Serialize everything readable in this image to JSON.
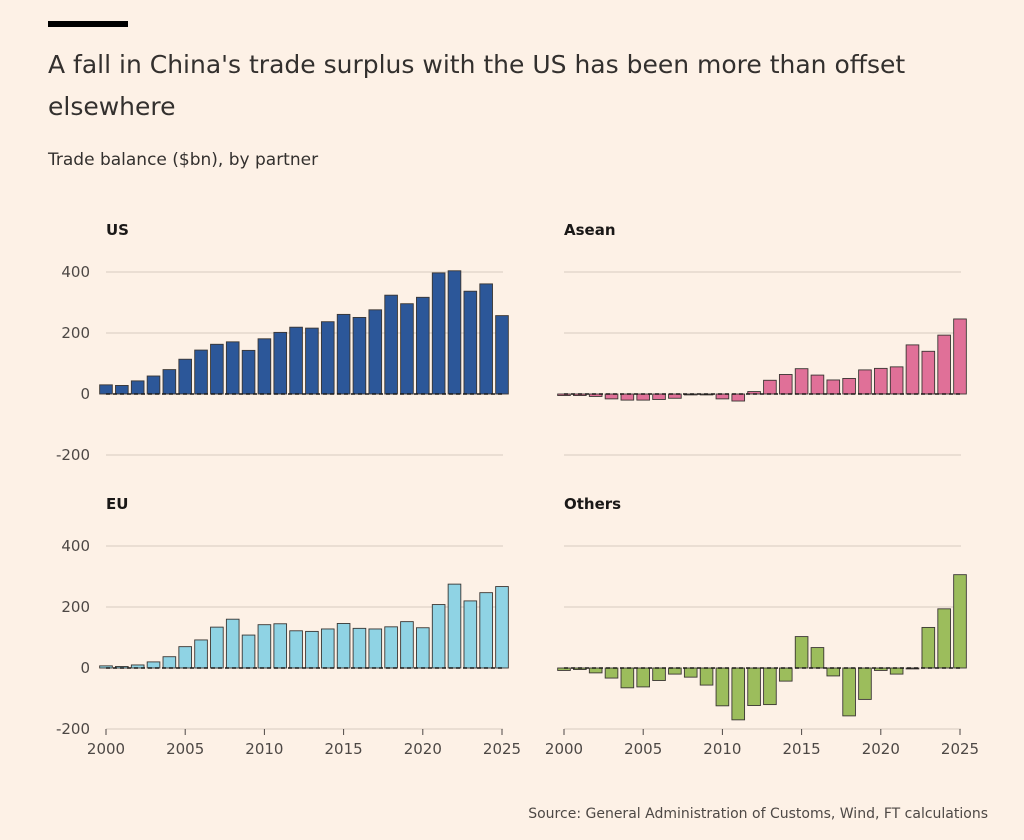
{
  "header": {
    "title": "A fall in China's trade surplus with the US has been more than offset elsewhere",
    "subtitle": "Trade balance ($bn), by partner"
  },
  "footer": {
    "source": "Source: General Administration of Customs, Wind, FT calculations"
  },
  "chart_data": [
    {
      "type": "bar",
      "title": "US",
      "color": "#2c5799",
      "x": [
        2000,
        2001,
        2002,
        2003,
        2004,
        2005,
        2006,
        2007,
        2008,
        2009,
        2010,
        2011,
        2012,
        2013,
        2014,
        2015,
        2016,
        2017,
        2018,
        2019,
        2020,
        2021,
        2022,
        2023,
        2024,
        2025
      ],
      "values": [
        30,
        28,
        43,
        59,
        80,
        114,
        144,
        163,
        171,
        143,
        181,
        202,
        219,
        216,
        237,
        261,
        251,
        276,
        324,
        296,
        317,
        397,
        404,
        337,
        361,
        257
      ],
      "ylim": [
        -200,
        400
      ],
      "yticks": [
        "400",
        "200",
        "0",
        "-200"
      ],
      "xticks": [],
      "grid": true
    },
    {
      "type": "bar",
      "title": "Asean",
      "color": "#e07098",
      "x": [
        2000,
        2001,
        2002,
        2003,
        2004,
        2005,
        2006,
        2007,
        2008,
        2009,
        2010,
        2011,
        2012,
        2013,
        2014,
        2015,
        2016,
        2017,
        2018,
        2019,
        2020,
        2021,
        2022,
        2023,
        2024,
        2025
      ],
      "values": [
        -5,
        -5,
        -8,
        -16,
        -20,
        -20,
        -18,
        -14,
        -3,
        -3,
        -16,
        -23,
        8,
        45,
        64,
        83,
        62,
        46,
        51,
        79,
        84,
        89,
        161,
        140,
        193,
        246
      ],
      "ylim": [
        -200,
        400
      ],
      "yticks": [],
      "xticks": [],
      "grid": true
    },
    {
      "type": "bar",
      "title": "EU",
      "color": "#8fd3e4",
      "x": [
        2000,
        2001,
        2002,
        2003,
        2004,
        2005,
        2006,
        2007,
        2008,
        2009,
        2010,
        2011,
        2012,
        2013,
        2014,
        2015,
        2016,
        2017,
        2018,
        2019,
        2020,
        2021,
        2022,
        2023,
        2024,
        2025
      ],
      "values": [
        7,
        5,
        10,
        20,
        37,
        70,
        92,
        134,
        160,
        108,
        142,
        145,
        122,
        120,
        128,
        146,
        130,
        128,
        135,
        152,
        132,
        208,
        275,
        220,
        247,
        267
      ],
      "ylim": [
        -200,
        400
      ],
      "yticks": [
        "400",
        "200",
        "0",
        "-200"
      ],
      "xticks": [
        "2000",
        "2005",
        "2010",
        "2015",
        "2020",
        "2025"
      ],
      "grid": true
    },
    {
      "type": "bar",
      "title": "Others",
      "color": "#9cbd5c",
      "x": [
        2000,
        2001,
        2002,
        2003,
        2004,
        2005,
        2006,
        2007,
        2008,
        2009,
        2010,
        2011,
        2012,
        2013,
        2014,
        2015,
        2016,
        2017,
        2018,
        2019,
        2020,
        2021,
        2022,
        2023,
        2024,
        2025
      ],
      "values": [
        -8,
        -5,
        -16,
        -33,
        -65,
        -62,
        -41,
        -20,
        -30,
        -56,
        -124,
        -170,
        -123,
        -120,
        -43,
        103,
        67,
        -26,
        -157,
        -103,
        -8,
        -20,
        -3,
        133,
        194,
        306
      ],
      "ylim": [
        -200,
        400
      ],
      "yticks": [],
      "xticks": [
        "2000",
        "2005",
        "2010",
        "2015",
        "2020",
        "2025"
      ],
      "grid": true
    }
  ]
}
